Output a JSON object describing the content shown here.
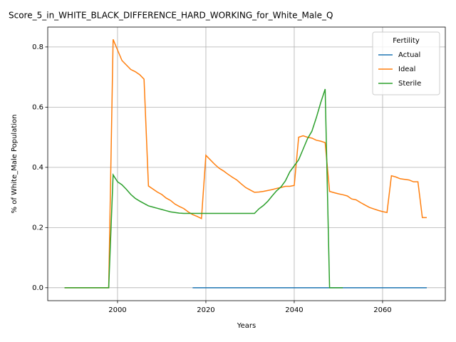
{
  "chart_data": {
    "type": "line",
    "title": "Score_5_in_WHITE_BLACK_DIFFERENCE_HARD_WORKING_for_White_Male_Q",
    "xlabel": "Years",
    "ylabel": "% of White_Male Population",
    "legend_title": "Fertility",
    "legend": "upper right",
    "grid": true,
    "xlim": [
      1984.2,
      2074.2
    ],
    "xticks": [
      2000,
      2020,
      2040,
      2060
    ],
    "ylim": [
      -0.043,
      0.866
    ],
    "yticks": [
      {
        "value": 0,
        "label": "0.0"
      },
      0.2,
      0.4,
      0.6,
      0.8
    ],
    "series": [
      {
        "name": "Actual",
        "color": "#1f77b4",
        "x": [
          2017,
          2070
        ],
        "values": [
          0,
          0
        ]
      },
      {
        "name": "Ideal",
        "color": "#ff7f0e",
        "x": [
          1988,
          1989,
          1990,
          1991,
          1992,
          1993,
          1994,
          1995,
          1996,
          1997,
          1998,
          1999,
          2000,
          2001,
          2002,
          2003,
          2004,
          2005,
          2006,
          2007,
          2008,
          2009,
          2010,
          2011,
          2012,
          2013,
          2014,
          2015,
          2016,
          2017,
          2018,
          2019,
          2020,
          2021,
          2022,
          2023,
          2024,
          2025,
          2026,
          2027,
          2028,
          2029,
          2030,
          2031,
          2032,
          2033,
          2034,
          2035,
          2036,
          2037,
          2038,
          2039,
          2040,
          2041,
          2042,
          2043,
          2044,
          2045,
          2046,
          2047,
          2048,
          2049,
          2050,
          2051,
          2052,
          2053,
          2054,
          2055,
          2056,
          2057,
          2058,
          2059,
          2060,
          2061,
          2062,
          2063,
          2064,
          2065,
          2066,
          2067,
          2068,
          2069,
          2070
        ],
        "values": [
          0,
          0,
          0,
          0,
          0,
          0,
          0,
          0,
          0,
          0,
          0,
          0.825,
          0.79,
          0.755,
          0.74,
          0.725,
          0.718,
          0.708,
          0.693,
          0.338,
          0.328,
          0.318,
          0.31,
          0.298,
          0.29,
          0.278,
          0.27,
          0.263,
          0.252,
          0.243,
          0.237,
          0.23,
          0.44,
          0.425,
          0.41,
          0.397,
          0.388,
          0.377,
          0.367,
          0.358,
          0.345,
          0.333,
          0.325,
          0.317,
          0.318,
          0.32,
          0.323,
          0.326,
          0.33,
          0.333,
          0.337,
          0.337,
          0.34,
          0.5,
          0.505,
          0.5,
          0.497,
          0.49,
          0.487,
          0.482,
          0.32,
          0.316,
          0.312,
          0.309,
          0.305,
          0.295,
          0.292,
          0.283,
          0.275,
          0.267,
          0.262,
          0.257,
          0.253,
          0.25,
          0.372,
          0.368,
          0.362,
          0.36,
          0.358,
          0.352,
          0.352,
          0.233,
          0.233
        ]
      },
      {
        "name": "Sterile",
        "color": "#2ca02c",
        "x": [
          1988,
          1989,
          1990,
          1991,
          1992,
          1993,
          1994,
          1995,
          1996,
          1997,
          1998,
          1999,
          2000,
          2001,
          2002,
          2003,
          2004,
          2005,
          2006,
          2007,
          2008,
          2009,
          2010,
          2011,
          2012,
          2013,
          2014,
          2015,
          2016,
          2017,
          2018,
          2019,
          2020,
          2021,
          2022,
          2023,
          2024,
          2025,
          2026,
          2027,
          2028,
          2029,
          2030,
          2031,
          2032,
          2033,
          2034,
          2035,
          2036,
          2037,
          2038,
          2039,
          2040,
          2041,
          2042,
          2043,
          2044,
          2045,
          2046,
          2047,
          2048,
          2049,
          2050,
          2051
        ],
        "values": [
          0,
          0,
          0,
          0,
          0,
          0,
          0,
          0,
          0,
          0,
          0,
          0.375,
          0.352,
          0.342,
          0.327,
          0.31,
          0.297,
          0.288,
          0.28,
          0.272,
          0.268,
          0.264,
          0.26,
          0.256,
          0.252,
          0.25,
          0.248,
          0.247,
          0.247,
          0.247,
          0.247,
          0.247,
          0.247,
          0.247,
          0.247,
          0.247,
          0.247,
          0.247,
          0.247,
          0.247,
          0.247,
          0.247,
          0.247,
          0.247,
          0.262,
          0.273,
          0.287,
          0.305,
          0.322,
          0.335,
          0.355,
          0.385,
          0.405,
          0.425,
          0.46,
          0.495,
          0.52,
          0.565,
          0.615,
          0.66,
          0,
          0,
          0,
          0
        ]
      }
    ]
  }
}
